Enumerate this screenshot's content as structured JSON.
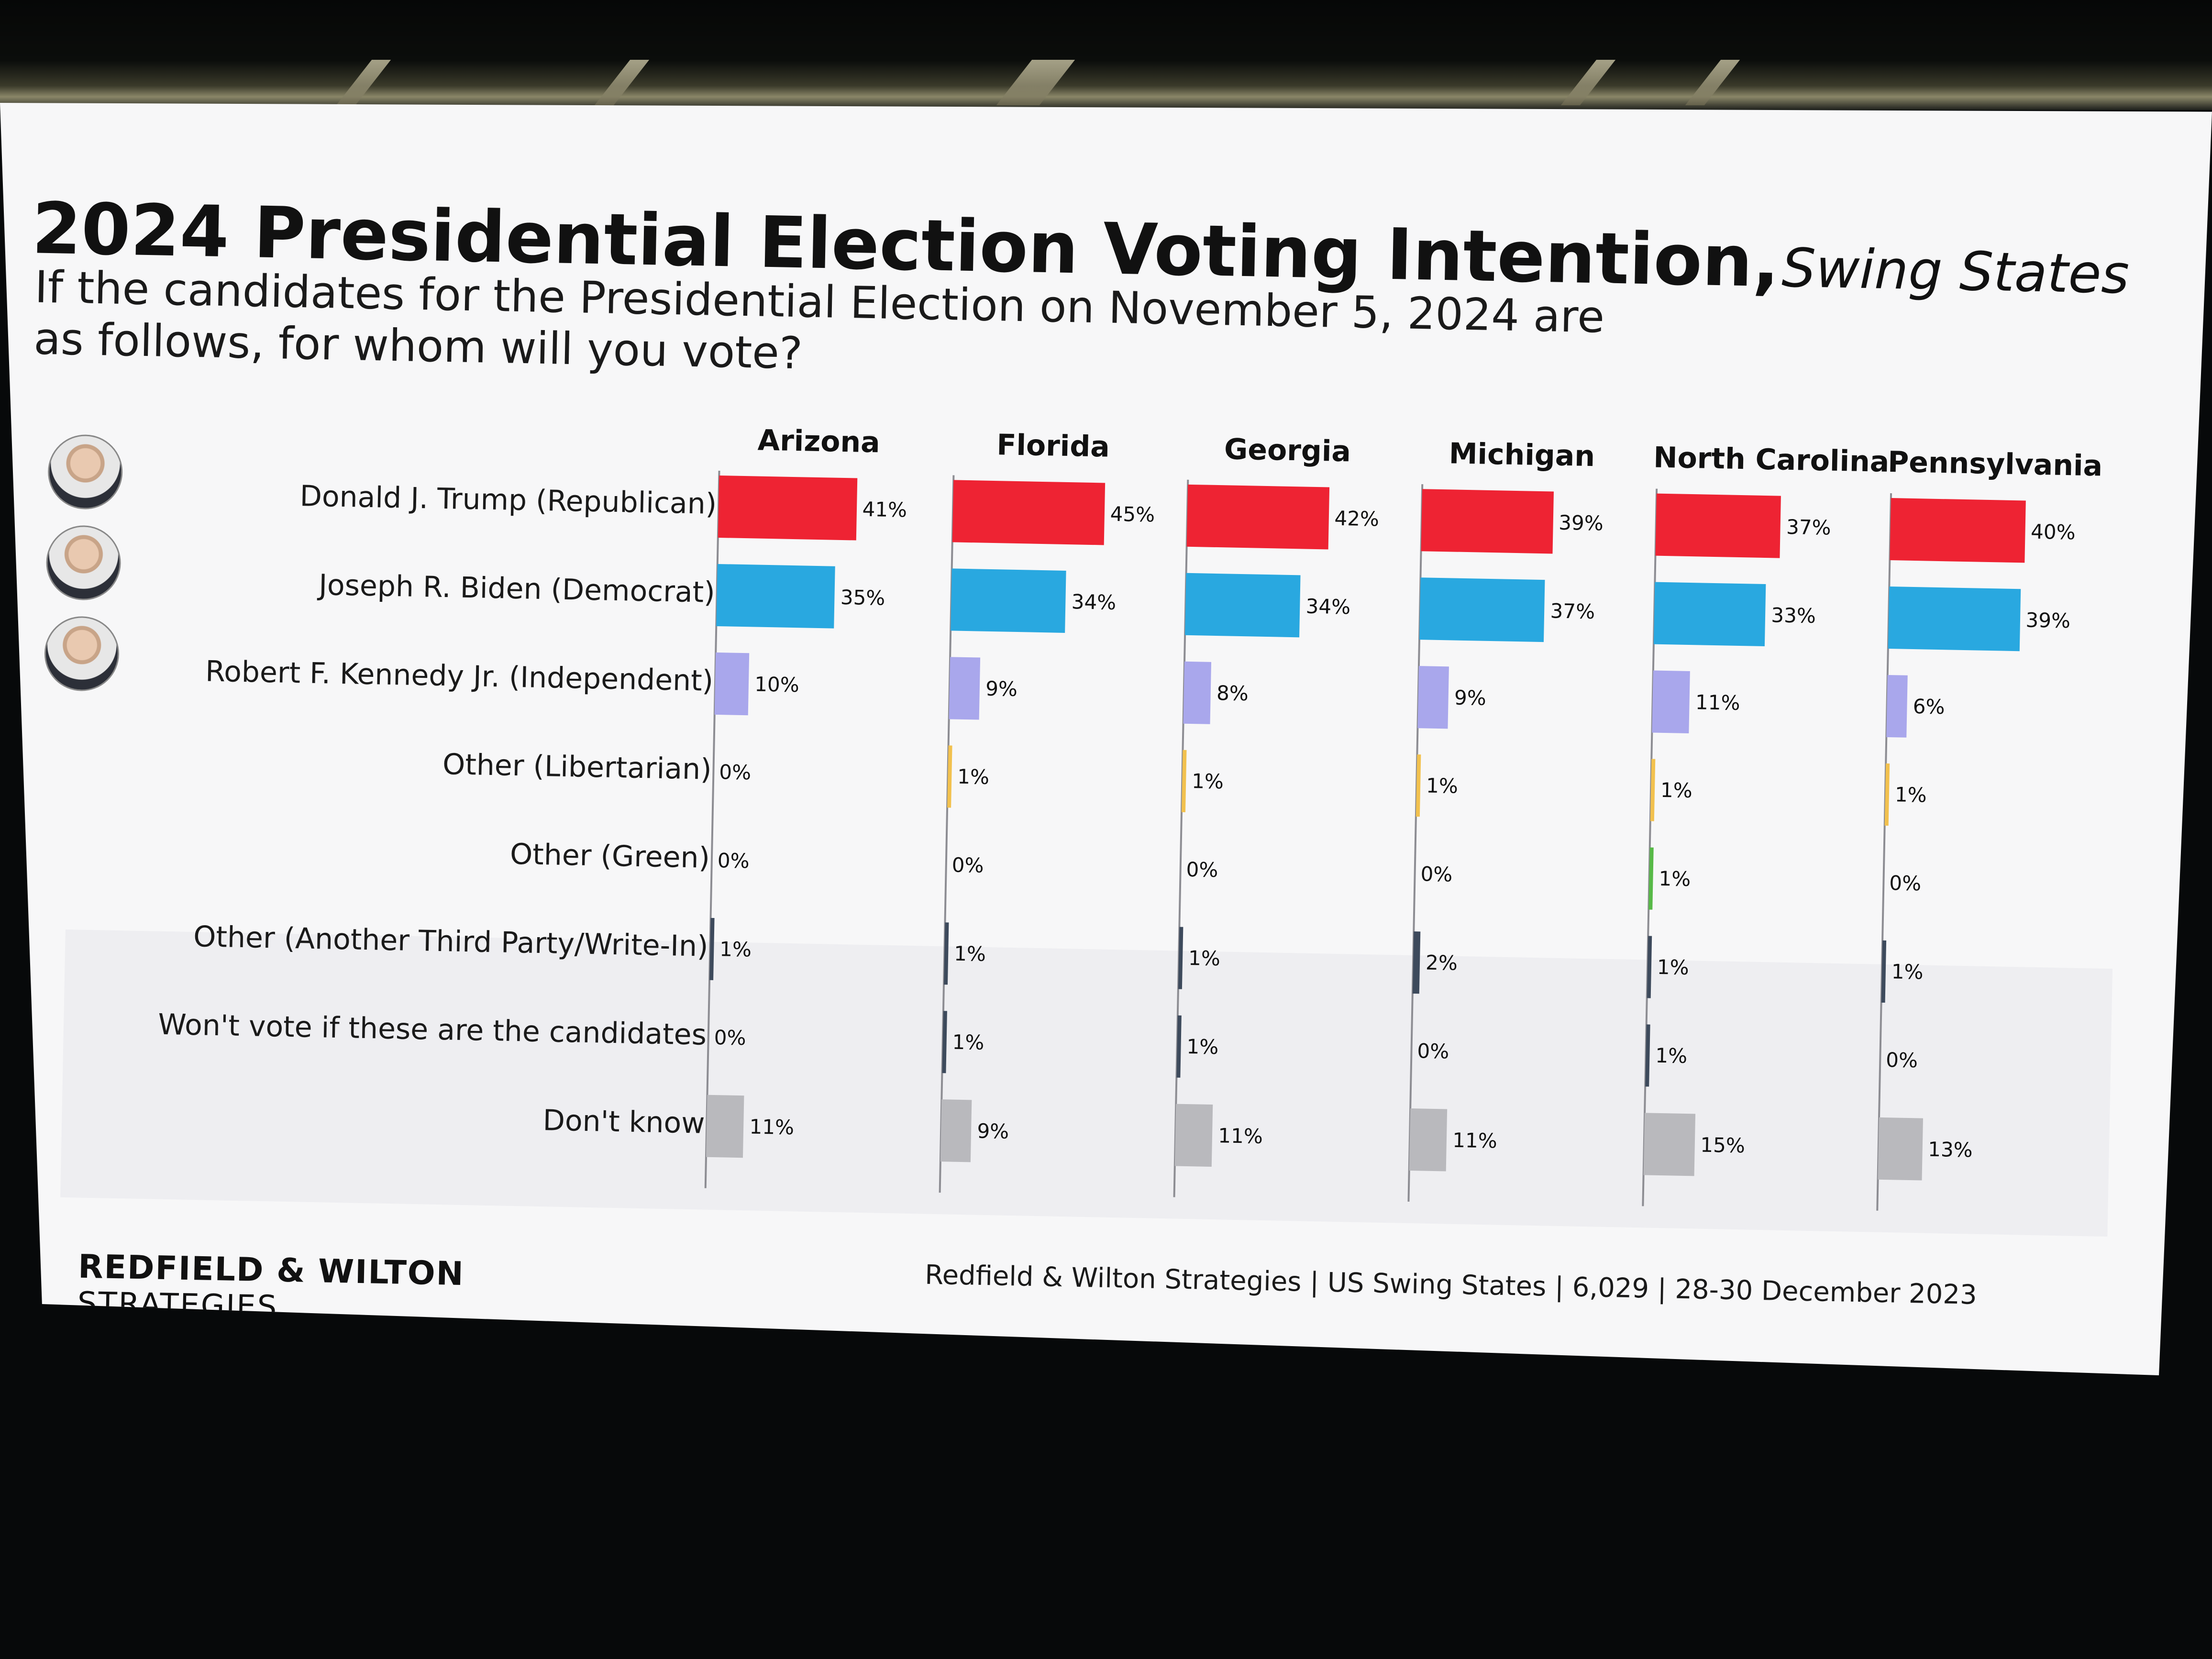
{
  "slide": {
    "title": "2024 Presidential Election Voting Intention",
    "title_separator": ",",
    "subtitle": "Swing States",
    "question": "If the candidates for the Presidential Election on November 5, 2024 are as follows, for whom will you vote?",
    "brand_line1": "REDFIELD & WILTON",
    "brand_line2": "STRATEGIES",
    "source": "Redfield & Wilton Strategies | US Swing States | 6,029 | 28-30 December 2023"
  },
  "colors": {
    "republican": "#ee2333",
    "democrat": "#29a8e0",
    "independent": "#a9a7ec",
    "libertarian": "#f2c14e",
    "green": "#57b947",
    "other": "#3d4a5c",
    "wont_vote": "#3d4a5c",
    "dont_know": "#b9b9bd"
  },
  "chart_data": {
    "type": "bar",
    "orientation": "horizontal",
    "grid": false,
    "categories": [
      "Donald J. Trump (Republican)",
      "Joseph R. Biden (Democrat)",
      "Robert F. Kennedy Jr. (Independent)",
      "Other (Libertarian)",
      "Other (Green)",
      "Other (Another Third Party/Write-In)",
      "Won't vote if these are the candidates",
      "Don't know"
    ],
    "category_colors": [
      "#ee2333",
      "#29a8e0",
      "#a9a7ec",
      "#f2c14e",
      "#57b947",
      "#3d4a5c",
      "#3d4a5c",
      "#b9b9bd"
    ],
    "value_suffix": "%",
    "series": [
      {
        "name": "Arizona",
        "values": [
          41,
          35,
          10,
          0,
          0,
          1,
          0,
          11
        ]
      },
      {
        "name": "Florida",
        "values": [
          45,
          34,
          9,
          1,
          0,
          1,
          1,
          9
        ]
      },
      {
        "name": "Georgia",
        "values": [
          42,
          34,
          8,
          1,
          0,
          1,
          1,
          11
        ]
      },
      {
        "name": "Michigan",
        "values": [
          39,
          37,
          9,
          1,
          0,
          2,
          0,
          11
        ]
      },
      {
        "name": "North Carolina",
        "values": [
          37,
          33,
          11,
          1,
          1,
          1,
          1,
          15
        ]
      },
      {
        "name": "Pennsylvania",
        "values": [
          40,
          39,
          6,
          1,
          0,
          1,
          0,
          13
        ]
      }
    ],
    "xlim": [
      0,
      50
    ]
  }
}
